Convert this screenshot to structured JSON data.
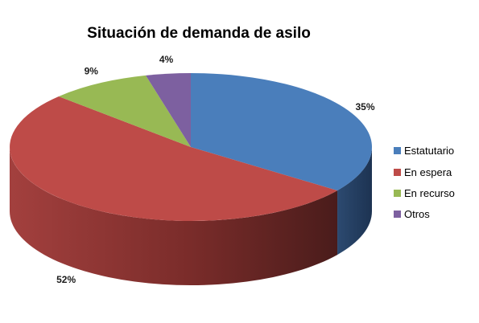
{
  "chart_data": {
    "type": "pie",
    "title": "Situación de demanda de asilo",
    "categories": [
      "Estatutario",
      "En espera",
      "En recurso",
      "Otros"
    ],
    "values": [
      35,
      52,
      9,
      4
    ],
    "data_labels": [
      "35%",
      "52%",
      "9%",
      "4%"
    ],
    "colors": [
      "#4a7ebb",
      "#be4b48",
      "#98b954",
      "#7d60a0"
    ],
    "legend_position": "right",
    "style": "3d"
  }
}
